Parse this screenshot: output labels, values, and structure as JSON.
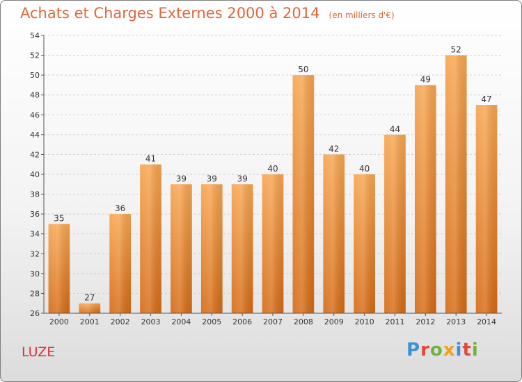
{
  "chart_data": {
    "type": "bar",
    "title": "Achats et Charges Externes 2000 à 2014",
    "subtitle": "(en milliers d'€)",
    "categories": [
      "2000",
      "2001",
      "2002",
      "2003",
      "2004",
      "2005",
      "2006",
      "2007",
      "2008",
      "2009",
      "2010",
      "2011",
      "2012",
      "2013",
      "2014"
    ],
    "values": [
      35,
      27,
      36,
      41,
      39,
      39,
      39,
      40,
      50,
      42,
      40,
      44,
      49,
      52,
      47
    ],
    "ylim": [
      26,
      54
    ],
    "yticks": [
      26,
      28,
      30,
      32,
      34,
      36,
      38,
      40,
      42,
      44,
      46,
      48,
      50,
      52,
      54
    ],
    "grid": true,
    "bar_color_top": "#f7a550",
    "bar_color_bottom": "#d56a14"
  },
  "footer": {
    "place": "LUZE",
    "logo_text": "Proxiti"
  },
  "colors": {
    "title": "#e0663a",
    "place": "#d8303a",
    "logo": [
      "#3e8fd6",
      "#e5463a",
      "#6fb33f",
      "#f0a020",
      "#3e8fd6",
      "#e5463a",
      "#6fb33f"
    ]
  }
}
